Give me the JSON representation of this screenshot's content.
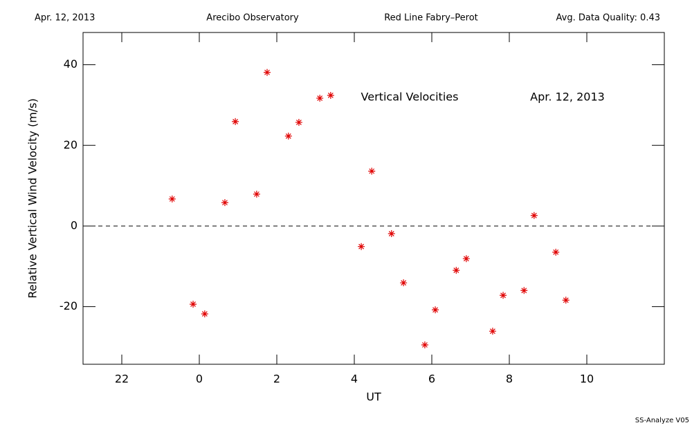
{
  "chart_data": {
    "type": "scatter",
    "header": [
      "Apr. 12, 2013",
      "Arecibo Observatory",
      "Red Line Fabry–Perot",
      "Avg. Data Quality: 0.43"
    ],
    "annotations": [
      "Vertical Velocities",
      "Apr. 12, 2013"
    ],
    "footer": "SS-Analyze V05",
    "xlabel": "UT",
    "ylabel": "Relative Vertical Wind Velocity (m/s)",
    "x": [
      -0.7,
      -0.16,
      0.14,
      0.66,
      0.93,
      1.48,
      1.75,
      2.3,
      2.57,
      3.11,
      3.39,
      4.18,
      4.45,
      4.96,
      5.27,
      5.82,
      6.09,
      6.63,
      6.89,
      7.57,
      7.84,
      8.38,
      8.64,
      9.2,
      9.46
    ],
    "values": [
      6.7,
      -19.4,
      -21.8,
      5.8,
      25.9,
      7.9,
      38.1,
      22.3,
      25.7,
      31.7,
      32.4,
      -5.1,
      13.6,
      -1.9,
      -14.1,
      -29.5,
      -20.8,
      -11.0,
      -8.1,
      -26.1,
      -17.2,
      -16.0,
      2.6,
      -6.5,
      -18.4
    ],
    "color": "#e00000",
    "xlim": [
      -3,
      12
    ],
    "xticks": [
      {
        "value": -2,
        "label": "22"
      },
      0,
      2,
      4,
      6,
      8,
      10
    ],
    "ylim": [
      -34.3,
      48
    ],
    "yticks": [
      -20,
      0,
      20,
      40
    ],
    "hline": 0
  }
}
